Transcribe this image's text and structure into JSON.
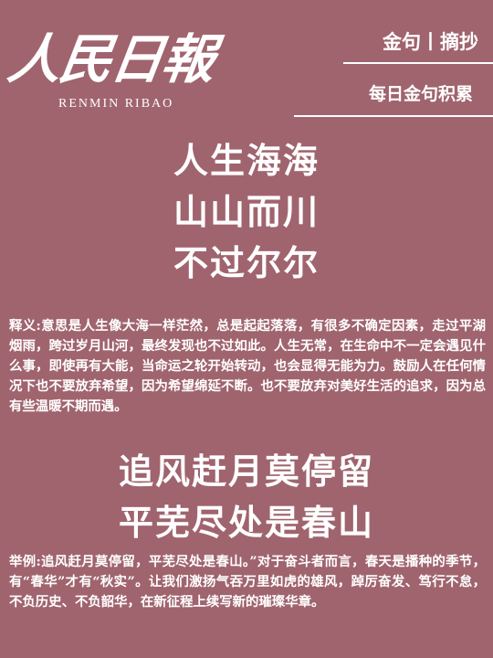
{
  "brand": {
    "name": "人民日報",
    "pinyin": "RENMIN RIBAO"
  },
  "tag": "金句丨摘抄",
  "subtag": "每日金句积累",
  "quote1": {
    "lines": [
      "人生海海",
      "山山而川",
      "不过尔尔"
    ]
  },
  "explanation": "释义:意思是人生像大海一样茫然，总是起起落落，有很多不确定因素，走过平湖烟雨，跨过岁月山河，最终发现也不过如此。人生无常，在生命中不一定会遇见什么事，即使再有大能，当命运之轮开始转动，也会显得无能为力。鼓励人在任何情况下也不要放弃希望，因为希望绵延不断。也不要放弃对美好生活的追求，因为总有些温暖不期而遇。",
  "quote2": {
    "lines": [
      "追风赶月莫停留",
      "平芜尽处是春山"
    ]
  },
  "example": "举例:追风赶月莫停留，平芜尽处是春山。”对于奋斗者而言，春天是播种的季节，有“春华”才有“秋实”。让我们激扬气吞万里如虎的雄风，踔厉奋发、笃行不怠，不负历史、不负韶华，在新征程上续写新的璀璨华章。"
}
